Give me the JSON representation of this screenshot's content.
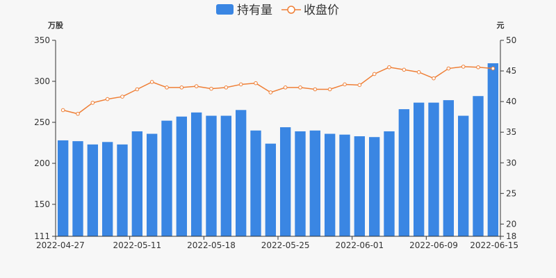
{
  "colors": {
    "bar": "#3a86e3",
    "line": "#ef7f36",
    "axis": "#333333",
    "background": "#f7f7f7"
  },
  "legend": {
    "holdings_label": "持有量",
    "price_label": "收盘价",
    "placement": "top-center"
  },
  "units": {
    "left": "万股",
    "right": "元"
  },
  "chart_data": {
    "type": "bar",
    "combined_with": "line",
    "legend": [
      "持有量",
      "收盘价"
    ],
    "left_axis": {
      "unit": "万股",
      "ylim": [
        111,
        350
      ],
      "ticks": [
        111,
        150,
        200,
        250,
        300,
        350
      ],
      "tick_labels": [
        "111",
        "150",
        "200",
        "250",
        "300",
        "350"
      ]
    },
    "right_axis": {
      "unit": "元",
      "ylim": [
        18,
        50
      ],
      "ticks": [
        18,
        20,
        25,
        30,
        35,
        40,
        45,
        50
      ],
      "tick_labels": [
        "18",
        "20",
        "25",
        "30",
        "35",
        "40",
        "45",
        "50"
      ]
    },
    "x_tick_labels": [
      "2022-04-27",
      "2022-05-11",
      "2022-05-18",
      "2022-05-25",
      "2022-06-01",
      "2022-06-09",
      "2022-06-15"
    ],
    "x_tick_label_indices": [
      0,
      5,
      10,
      15,
      20,
      25,
      29
    ],
    "x_axis_ticks": [
      0,
      5,
      10,
      15,
      20,
      25,
      30
    ],
    "grid": false,
    "series": [
      {
        "name": "持有量",
        "type": "bar",
        "axis": "left",
        "values": [
          228,
          227,
          223,
          226,
          223,
          239,
          236,
          252,
          257,
          262,
          258,
          258,
          265,
          240,
          224,
          244,
          239,
          240,
          236,
          235,
          233,
          232,
          239,
          266,
          274,
          274,
          277,
          258,
          282,
          322
        ]
      },
      {
        "name": "收盘价",
        "type": "line",
        "axis": "right",
        "values": [
          38.6,
          38.0,
          39.8,
          40.4,
          40.8,
          42.0,
          43.2,
          42.3,
          42.3,
          42.5,
          42.1,
          42.3,
          42.8,
          43.0,
          41.5,
          42.3,
          42.3,
          42.0,
          42.0,
          42.8,
          42.7,
          44.5,
          45.6,
          45.2,
          44.8,
          43.8,
          45.4,
          45.7,
          45.6,
          45.4
        ]
      }
    ]
  }
}
